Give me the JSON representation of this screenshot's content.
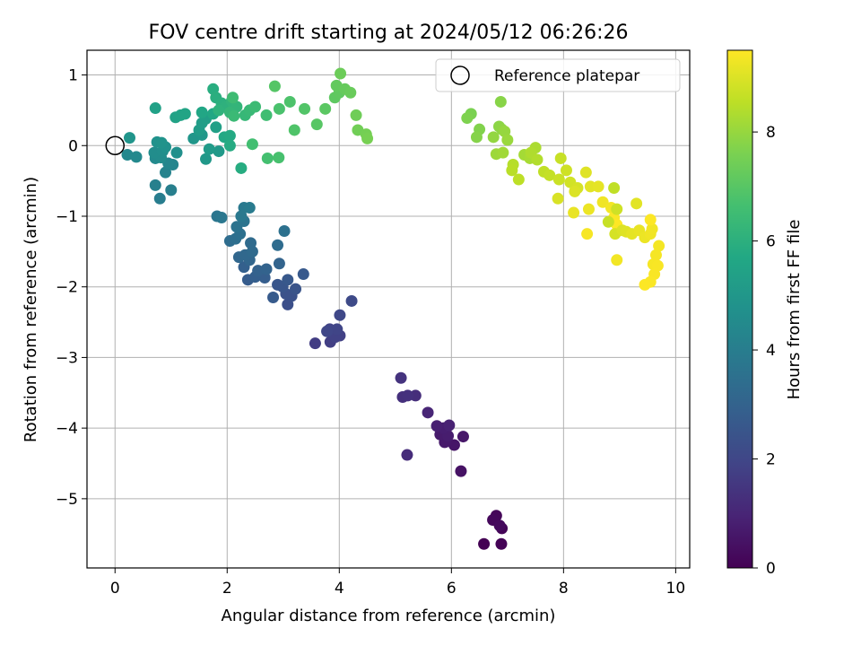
{
  "chart_data": {
    "type": "scatter",
    "title": "FOV centre drift starting at 2024/05/12 06:26:26",
    "xlabel": "Angular distance from reference (arcmin)",
    "ylabel": "Rotation from reference (arcmin)",
    "xlim": [
      -0.5,
      10.25
    ],
    "ylim": [
      -5.98,
      1.35
    ],
    "xticks": [
      0,
      2,
      4,
      6,
      8,
      10
    ],
    "yticks": [
      1,
      0,
      -1,
      -2,
      -3,
      -4,
      -5
    ],
    "grid": true,
    "legend": {
      "position": "top-right",
      "entries": [
        "Reference platepar"
      ]
    },
    "reference_point": {
      "x": 0,
      "y": 0
    },
    "colorbar": {
      "label": "Hours from first FF file",
      "colormap": "viridis",
      "range": [
        0,
        9.5
      ],
      "ticks": [
        0,
        2,
        4,
        6,
        8
      ]
    },
    "points": [
      {
        "x": 6.58,
        "y": -5.64,
        "h": 0.0
      },
      {
        "x": 6.89,
        "y": -5.64,
        "h": 0.05
      },
      {
        "x": 6.9,
        "y": -5.42,
        "h": 0.1
      },
      {
        "x": 6.8,
        "y": -5.24,
        "h": 0.15
      },
      {
        "x": 6.74,
        "y": -5.3,
        "h": 0.2
      },
      {
        "x": 6.86,
        "y": -5.38,
        "h": 0.25
      },
      {
        "x": 6.17,
        "y": -4.61,
        "h": 0.45
      },
      {
        "x": 6.05,
        "y": -4.24,
        "h": 0.55
      },
      {
        "x": 6.21,
        "y": -4.12,
        "h": 0.6
      },
      {
        "x": 5.88,
        "y": -4.2,
        "h": 0.65
      },
      {
        "x": 5.8,
        "y": -4.09,
        "h": 0.7
      },
      {
        "x": 5.94,
        "y": -4.11,
        "h": 0.75
      },
      {
        "x": 5.86,
        "y": -4.0,
        "h": 0.8
      },
      {
        "x": 5.74,
        "y": -3.97,
        "h": 0.85
      },
      {
        "x": 5.96,
        "y": -3.96,
        "h": 0.9
      },
      {
        "x": 5.58,
        "y": -3.78,
        "h": 1.0
      },
      {
        "x": 5.21,
        "y": -4.38,
        "h": 1.2
      },
      {
        "x": 5.36,
        "y": -3.54,
        "h": 1.25
      },
      {
        "x": 5.13,
        "y": -3.56,
        "h": 1.3
      },
      {
        "x": 5.22,
        "y": -3.54,
        "h": 1.35
      },
      {
        "x": 5.1,
        "y": -3.29,
        "h": 1.4
      },
      {
        "x": 3.57,
        "y": -2.8,
        "h": 1.7
      },
      {
        "x": 3.84,
        "y": -2.78,
        "h": 1.75
      },
      {
        "x": 4.01,
        "y": -2.69,
        "h": 1.8
      },
      {
        "x": 3.93,
        "y": -2.71,
        "h": 1.85
      },
      {
        "x": 3.83,
        "y": -2.6,
        "h": 1.9
      },
      {
        "x": 3.96,
        "y": -2.6,
        "h": 1.95
      },
      {
        "x": 3.78,
        "y": -2.63,
        "h": 2.0
      },
      {
        "x": 4.01,
        "y": -2.4,
        "h": 2.05
      },
      {
        "x": 4.22,
        "y": -2.2,
        "h": 2.1
      },
      {
        "x": 3.08,
        "y": -2.25,
        "h": 2.3
      },
      {
        "x": 3.15,
        "y": -2.13,
        "h": 2.35
      },
      {
        "x": 3.05,
        "y": -2.1,
        "h": 2.4
      },
      {
        "x": 3.22,
        "y": -2.03,
        "h": 2.45
      },
      {
        "x": 2.99,
        "y": -2.0,
        "h": 2.5
      },
      {
        "x": 2.9,
        "y": -1.97,
        "h": 2.55
      },
      {
        "x": 3.08,
        "y": -1.9,
        "h": 2.6
      },
      {
        "x": 3.36,
        "y": -1.82,
        "h": 2.65
      },
      {
        "x": 2.82,
        "y": -2.15,
        "h": 2.7
      },
      {
        "x": 2.37,
        "y": -1.9,
        "h": 2.75
      },
      {
        "x": 2.67,
        "y": -1.87,
        "h": 2.8
      },
      {
        "x": 2.5,
        "y": -1.86,
        "h": 2.85
      },
      {
        "x": 2.3,
        "y": -1.72,
        "h": 2.9
      },
      {
        "x": 2.55,
        "y": -1.77,
        "h": 2.95
      },
      {
        "x": 2.7,
        "y": -1.75,
        "h": 3.0
      },
      {
        "x": 2.93,
        "y": -1.67,
        "h": 3.05
      },
      {
        "x": 2.4,
        "y": -1.62,
        "h": 3.1
      },
      {
        "x": 2.21,
        "y": -1.58,
        "h": 3.15
      },
      {
        "x": 2.32,
        "y": -1.55,
        "h": 3.2
      },
      {
        "x": 2.45,
        "y": -1.5,
        "h": 3.25
      },
      {
        "x": 2.42,
        "y": -1.38,
        "h": 3.3
      },
      {
        "x": 2.9,
        "y": -1.41,
        "h": 3.35
      },
      {
        "x": 2.05,
        "y": -1.35,
        "h": 3.4
      },
      {
        "x": 2.15,
        "y": -1.32,
        "h": 3.45
      },
      {
        "x": 2.23,
        "y": -1.25,
        "h": 3.5
      },
      {
        "x": 3.02,
        "y": -1.21,
        "h": 3.55
      },
      {
        "x": 2.17,
        "y": -1.15,
        "h": 3.6
      },
      {
        "x": 2.3,
        "y": -1.07,
        "h": 3.65
      },
      {
        "x": 1.82,
        "y": -1.0,
        "h": 3.7
      },
      {
        "x": 1.9,
        "y": -1.02,
        "h": 3.75
      },
      {
        "x": 2.25,
        "y": -1.0,
        "h": 3.8
      },
      {
        "x": 2.3,
        "y": -0.88,
        "h": 3.85
      },
      {
        "x": 2.4,
        "y": -0.88,
        "h": 3.9
      },
      {
        "x": 0.8,
        "y": -0.75,
        "h": 4.0
      },
      {
        "x": 1.0,
        "y": -0.63,
        "h": 4.05
      },
      {
        "x": 0.72,
        "y": -0.56,
        "h": 4.1
      },
      {
        "x": 0.9,
        "y": -0.38,
        "h": 4.2
      },
      {
        "x": 1.03,
        "y": -0.27,
        "h": 4.3
      },
      {
        "x": 0.95,
        "y": -0.25,
        "h": 4.35
      },
      {
        "x": 0.22,
        "y": -0.13,
        "h": 4.4
      },
      {
        "x": 0.38,
        "y": -0.16,
        "h": 4.45
      },
      {
        "x": 0.72,
        "y": -0.18,
        "h": 4.5
      },
      {
        "x": 0.82,
        "y": -0.17,
        "h": 4.55
      },
      {
        "x": 0.7,
        "y": -0.1,
        "h": 4.6
      },
      {
        "x": 0.85,
        "y": -0.08,
        "h": 4.65
      },
      {
        "x": 1.1,
        "y": -0.1,
        "h": 4.7
      },
      {
        "x": 0.9,
        "y": -0.02,
        "h": 4.75
      },
      {
        "x": 0.75,
        "y": 0.05,
        "h": 4.8
      },
      {
        "x": 0.83,
        "y": 0.04,
        "h": 4.85
      },
      {
        "x": 0.26,
        "y": 0.11,
        "h": 4.9
      },
      {
        "x": 1.4,
        "y": 0.1,
        "h": 4.95
      },
      {
        "x": 1.55,
        "y": 0.15,
        "h": 5.0
      },
      {
        "x": 1.62,
        "y": -0.19,
        "h": 5.05
      },
      {
        "x": 1.85,
        "y": -0.08,
        "h": 5.1
      },
      {
        "x": 1.68,
        "y": -0.05,
        "h": 5.15
      },
      {
        "x": 1.5,
        "y": 0.22,
        "h": 5.2
      },
      {
        "x": 1.55,
        "y": 0.32,
        "h": 5.25
      },
      {
        "x": 1.62,
        "y": 0.38,
        "h": 5.3
      },
      {
        "x": 1.8,
        "y": 0.26,
        "h": 5.35
      },
      {
        "x": 0.72,
        "y": 0.53,
        "h": 5.4
      },
      {
        "x": 1.08,
        "y": 0.4,
        "h": 5.45
      },
      {
        "x": 1.17,
        "y": 0.43,
        "h": 5.5
      },
      {
        "x": 1.25,
        "y": 0.45,
        "h": 5.55
      },
      {
        "x": 1.55,
        "y": 0.47,
        "h": 5.6
      },
      {
        "x": 1.75,
        "y": 0.45,
        "h": 5.65
      },
      {
        "x": 1.95,
        "y": 0.12,
        "h": 5.7
      },
      {
        "x": 2.05,
        "y": 0.14,
        "h": 5.75
      },
      {
        "x": 2.05,
        "y": 0.0,
        "h": 5.8
      },
      {
        "x": 2.25,
        "y": -0.32,
        "h": 5.85
      },
      {
        "x": 1.75,
        "y": 0.8,
        "h": 5.9
      },
      {
        "x": 1.8,
        "y": 0.68,
        "h": 5.95
      },
      {
        "x": 1.9,
        "y": 0.6,
        "h": 6.0
      },
      {
        "x": 1.97,
        "y": 0.55,
        "h": 6.05
      },
      {
        "x": 1.85,
        "y": 0.5,
        "h": 6.1
      },
      {
        "x": 2.08,
        "y": 0.63,
        "h": 6.15
      },
      {
        "x": 2.17,
        "y": 0.55,
        "h": 6.2
      },
      {
        "x": 2.05,
        "y": 0.47,
        "h": 6.25
      },
      {
        "x": 2.32,
        "y": 0.43,
        "h": 6.3
      },
      {
        "x": 2.4,
        "y": 0.5,
        "h": 6.35
      },
      {
        "x": 2.12,
        "y": 0.42,
        "h": 6.4
      },
      {
        "x": 2.5,
        "y": 0.55,
        "h": 6.45
      },
      {
        "x": 2.1,
        "y": 0.68,
        "h": 6.5
      },
      {
        "x": 2.7,
        "y": 0.43,
        "h": 6.55
      },
      {
        "x": 2.45,
        "y": 0.02,
        "h": 6.6
      },
      {
        "x": 2.72,
        "y": -0.18,
        "h": 6.65
      },
      {
        "x": 2.92,
        "y": -0.17,
        "h": 6.7
      },
      {
        "x": 2.93,
        "y": 0.52,
        "h": 6.75
      },
      {
        "x": 3.12,
        "y": 0.62,
        "h": 6.8
      },
      {
        "x": 3.2,
        "y": 0.22,
        "h": 6.85
      },
      {
        "x": 3.38,
        "y": 0.52,
        "h": 6.9
      },
      {
        "x": 2.85,
        "y": 0.84,
        "h": 6.95
      },
      {
        "x": 3.6,
        "y": 0.3,
        "h": 7.0
      },
      {
        "x": 3.75,
        "y": 0.52,
        "h": 7.05
      },
      {
        "x": 3.92,
        "y": 0.68,
        "h": 7.1
      },
      {
        "x": 4.0,
        "y": 0.75,
        "h": 7.15
      },
      {
        "x": 3.95,
        "y": 0.85,
        "h": 7.2
      },
      {
        "x": 4.1,
        "y": 0.8,
        "h": 7.25
      },
      {
        "x": 4.2,
        "y": 0.75,
        "h": 7.3
      },
      {
        "x": 4.02,
        "y": 1.02,
        "h": 7.35
      },
      {
        "x": 4.3,
        "y": 0.43,
        "h": 7.4
      },
      {
        "x": 4.33,
        "y": 0.22,
        "h": 7.45
      },
      {
        "x": 4.48,
        "y": 0.16,
        "h": 7.5
      },
      {
        "x": 4.5,
        "y": 0.1,
        "h": 7.55
      },
      {
        "x": 6.35,
        "y": 0.45,
        "h": 7.6
      },
      {
        "x": 6.28,
        "y": 0.39,
        "h": 7.65
      },
      {
        "x": 6.5,
        "y": 0.23,
        "h": 7.7
      },
      {
        "x": 6.45,
        "y": 0.12,
        "h": 7.75
      },
      {
        "x": 6.88,
        "y": 0.62,
        "h": 7.8
      },
      {
        "x": 6.85,
        "y": 0.27,
        "h": 7.85
      },
      {
        "x": 6.9,
        "y": 0.23,
        "h": 7.9
      },
      {
        "x": 6.75,
        "y": 0.12,
        "h": 7.95
      },
      {
        "x": 6.95,
        "y": 0.2,
        "h": 8.0
      },
      {
        "x": 7.0,
        "y": 0.08,
        "h": 8.05
      },
      {
        "x": 6.8,
        "y": -0.12,
        "h": 8.1
      },
      {
        "x": 6.92,
        "y": -0.1,
        "h": 8.15
      },
      {
        "x": 7.3,
        "y": -0.13,
        "h": 8.2
      },
      {
        "x": 7.4,
        "y": -0.18,
        "h": 8.25
      },
      {
        "x": 7.5,
        "y": -0.03,
        "h": 8.3
      },
      {
        "x": 7.42,
        "y": -0.1,
        "h": 8.35
      },
      {
        "x": 7.53,
        "y": -0.2,
        "h": 8.4
      },
      {
        "x": 7.1,
        "y": -0.27,
        "h": 8.45
      },
      {
        "x": 7.08,
        "y": -0.35,
        "h": 8.5
      },
      {
        "x": 7.2,
        "y": -0.48,
        "h": 8.55
      },
      {
        "x": 7.65,
        "y": -0.37,
        "h": 8.6
      },
      {
        "x": 7.75,
        "y": -0.42,
        "h": 8.65
      },
      {
        "x": 7.95,
        "y": -0.18,
        "h": 8.7
      },
      {
        "x": 7.92,
        "y": -0.48,
        "h": 8.75
      },
      {
        "x": 8.05,
        "y": -0.35,
        "h": 8.8
      },
      {
        "x": 8.12,
        "y": -0.52,
        "h": 8.85
      },
      {
        "x": 8.25,
        "y": -0.6,
        "h": 8.9
      },
      {
        "x": 7.9,
        "y": -0.75,
        "h": 8.95
      },
      {
        "x": 8.2,
        "y": -0.65,
        "h": 9.0
      },
      {
        "x": 8.4,
        "y": -0.38,
        "h": 9.05
      },
      {
        "x": 8.48,
        "y": -0.58,
        "h": 9.1
      },
      {
        "x": 8.62,
        "y": -0.58,
        "h": 9.15
      },
      {
        "x": 8.18,
        "y": -0.95,
        "h": 9.2
      },
      {
        "x": 8.45,
        "y": -0.9,
        "h": 9.25
      },
      {
        "x": 8.7,
        "y": -0.8,
        "h": 9.3
      },
      {
        "x": 8.85,
        "y": -0.88,
        "h": 9.35
      },
      {
        "x": 8.42,
        "y": -1.25,
        "h": 9.4
      },
      {
        "x": 8.9,
        "y": -1.02,
        "h": 9.45
      },
      {
        "x": 8.95,
        "y": -1.12,
        "h": 9.5
      }
    ],
    "points_tail": [
      {
        "x": 8.9,
        "y": -0.6,
        "h": 8.6
      },
      {
        "x": 8.8,
        "y": -1.08,
        "h": 8.7
      },
      {
        "x": 8.95,
        "y": -0.9,
        "h": 8.8
      },
      {
        "x": 8.92,
        "y": -1.25,
        "h": 8.9
      },
      {
        "x": 9.05,
        "y": -1.2,
        "h": 9.0
      },
      {
        "x": 9.12,
        "y": -1.22,
        "h": 9.05
      },
      {
        "x": 9.3,
        "y": -0.82,
        "h": 9.1
      },
      {
        "x": 9.22,
        "y": -1.25,
        "h": 9.15
      },
      {
        "x": 9.35,
        "y": -1.2,
        "h": 9.2
      },
      {
        "x": 9.45,
        "y": -1.3,
        "h": 9.25
      },
      {
        "x": 9.55,
        "y": -1.25,
        "h": 9.3
      },
      {
        "x": 9.58,
        "y": -1.18,
        "h": 9.32
      },
      {
        "x": 8.95,
        "y": -1.62,
        "h": 9.34
      },
      {
        "x": 9.7,
        "y": -1.42,
        "h": 9.36
      },
      {
        "x": 9.65,
        "y": -1.55,
        "h": 9.38
      },
      {
        "x": 9.6,
        "y": -1.68,
        "h": 9.4
      },
      {
        "x": 9.68,
        "y": -1.7,
        "h": 9.42
      },
      {
        "x": 9.62,
        "y": -1.82,
        "h": 9.44
      },
      {
        "x": 9.55,
        "y": -1.93,
        "h": 9.46
      },
      {
        "x": 9.45,
        "y": -1.97,
        "h": 9.48
      },
      {
        "x": 9.55,
        "y": -1.05,
        "h": 9.49
      }
    ]
  }
}
